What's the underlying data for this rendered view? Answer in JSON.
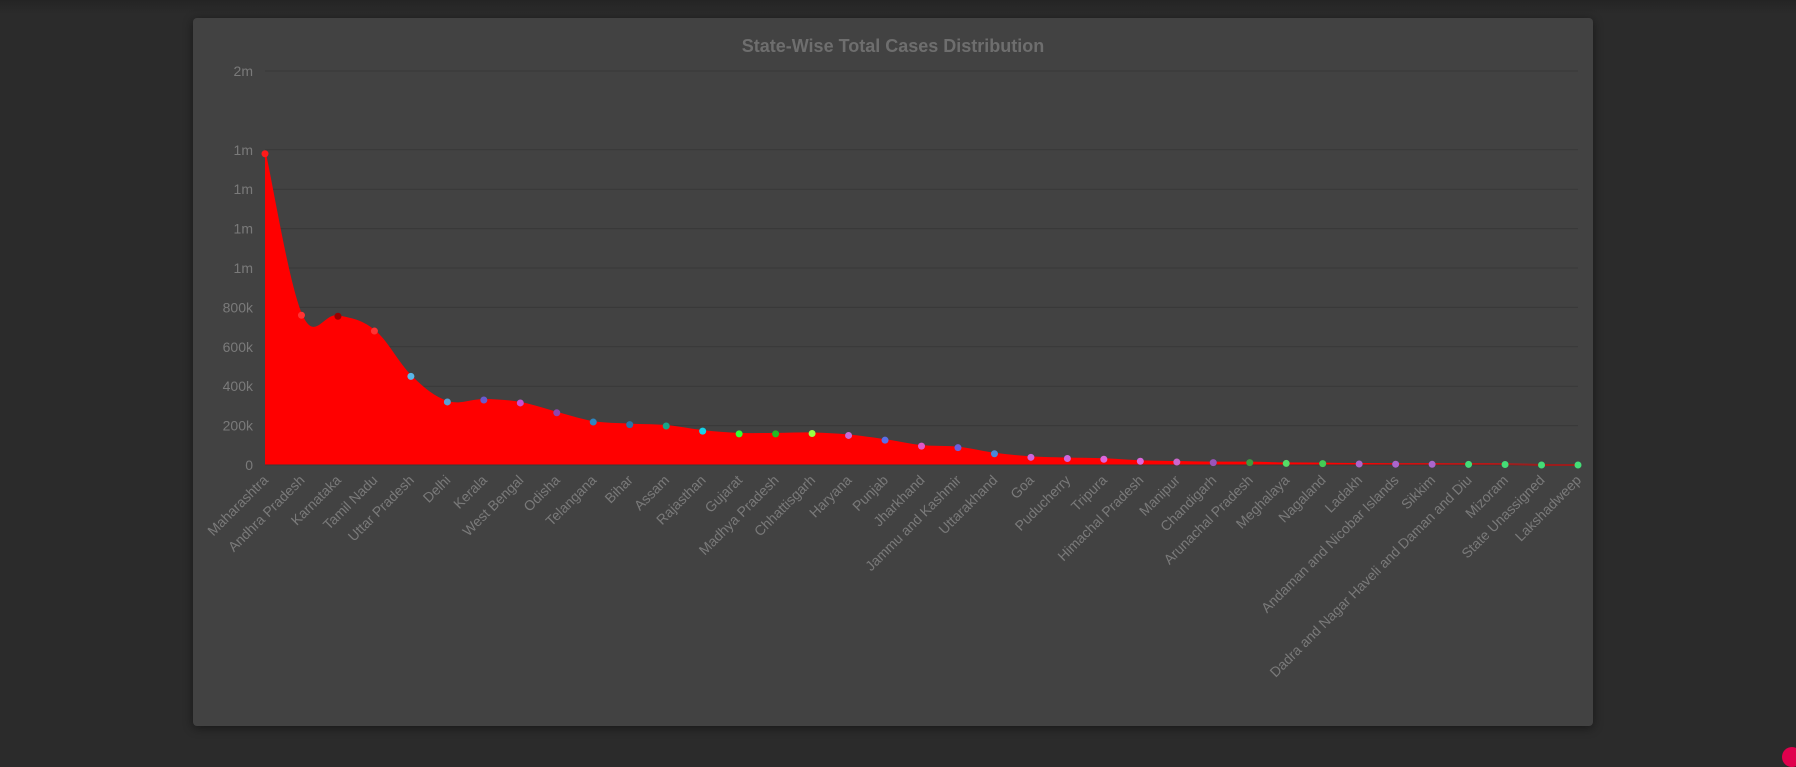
{
  "chart_data": {
    "type": "area",
    "title": "State-Wise Total Cases Distribution",
    "xlabel": "",
    "ylabel": "",
    "ylim": [
      0,
      2000000
    ],
    "y_tick_values": [
      0,
      200000,
      400000,
      600000,
      800000,
      1000000,
      1200000,
      1400000,
      1600000,
      2000000
    ],
    "y_tick_labels": [
      "0",
      "200k",
      "400k",
      "600k",
      "800k",
      "1m",
      "1m",
      "1m",
      "1m",
      "2m"
    ],
    "grid": true,
    "fill_color": "#ff0000",
    "categories": [
      "Maharashtra",
      "Andhra Pradesh",
      "Karnataka",
      "Tamil Nadu",
      "Uttar Pradesh",
      "Delhi",
      "Kerala",
      "West Bengal",
      "Odisha",
      "Telangana",
      "Bihar",
      "Assam",
      "Rajasthan",
      "Gujarat",
      "Madhya Pradesh",
      "Chhattisgarh",
      "Haryana",
      "Punjab",
      "Jharkhand",
      "Jammu and Kashmir",
      "Uttarakhand",
      "Goa",
      "Puducherry",
      "Tripura",
      "Himachal Pradesh",
      "Manipur",
      "Chandigarh",
      "Arunachal Pradesh",
      "Meghalaya",
      "Nagaland",
      "Ladakh",
      "Andaman and Nicobar Islands",
      "Sikkim",
      "Dadra and Nagar Haveli and Daman and Diu",
      "Mizoram",
      "State Unassigned",
      "Lakshadweep"
    ],
    "values": [
      1580000,
      760000,
      755000,
      680000,
      450000,
      320000,
      330000,
      315000,
      265000,
      218000,
      205000,
      198000,
      172000,
      158000,
      158000,
      160000,
      150000,
      126000,
      96000,
      88000,
      57000,
      39000,
      33000,
      29000,
      19000,
      15000,
      12000,
      12000,
      8000,
      7000,
      5000,
      4000,
      3500,
      3000,
      2500,
      0,
      0
    ],
    "point_colors": [
      "#ff1a1a",
      "#ff3333",
      "#990000",
      "#ff3333",
      "#5bb7e8",
      "#5a9fd4",
      "#6a5acd",
      "#c94fd0",
      "#8e44ad",
      "#2e86c1",
      "#2874a6",
      "#17a589",
      "#16d2e8",
      "#33ff33",
      "#22bb22",
      "#99ff44",
      "#c86ad6",
      "#5a6ee8",
      "#e058c8",
      "#6a5fdc",
      "#4a88d8",
      "#cc66dd",
      "#d066dd",
      "#dd66dd",
      "#dd66dd",
      "#cc66cc",
      "#9955bb",
      "#3d9b3d",
      "#55dd66",
      "#44cc55",
      "#aa66cc",
      "#aa66cc",
      "#aa66cc",
      "#44dd77",
      "#44dd77",
      "#44dd77",
      "#44dd77"
    ]
  }
}
